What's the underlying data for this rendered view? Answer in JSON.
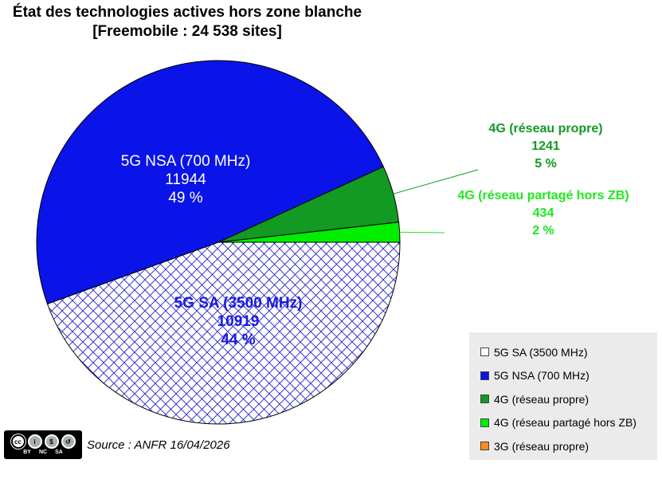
{
  "header": {
    "title_line1": "État des technologies actives hors zone blanche",
    "title_line2": "[Freemobile : 24 538 sites]"
  },
  "chart_data": {
    "type": "pie",
    "title": "État des technologies actives hors zone blanche [Freemobile : 24 538 sites]",
    "slices": [
      {
        "label": "5G SA (3500 MHz)",
        "value": 10919,
        "percent": "44 %",
        "color": "#ffffff",
        "pattern": "crosshatch-blue",
        "label_color": "#1a1ae0"
      },
      {
        "label": "5G NSA (700 MHz)",
        "value": 11944,
        "percent": "49 %",
        "color": "#0a14e8",
        "label_color": "#ffffff"
      },
      {
        "label": "4G (réseau propre)",
        "value": 1241,
        "percent": "5 %",
        "color": "#129a22",
        "label_color": "#129a22"
      },
      {
        "label": "4G (réseau partagé hors ZB)",
        "value": 434,
        "percent": "2 %",
        "color": "#00ee00",
        "label_color": "#1ee81e"
      }
    ],
    "legend": {
      "position": "bottom-right",
      "items": [
        {
          "label": "5G SA (3500 MHz)",
          "color": "#ffffff"
        },
        {
          "label": "5G NSA (700 MHz)",
          "color": "#0a14e8"
        },
        {
          "label": "4G (réseau propre)",
          "color": "#129a22"
        },
        {
          "label": "4G (réseau partagé hors ZB)",
          "color": "#00ee00"
        },
        {
          "label": "3G (réseau propre)",
          "color": "#ff8c1a"
        }
      ]
    }
  },
  "footer": {
    "license_tags": [
      "BY",
      "NC",
      "SA"
    ],
    "source": "Source : ANFR 16/04/2026"
  }
}
